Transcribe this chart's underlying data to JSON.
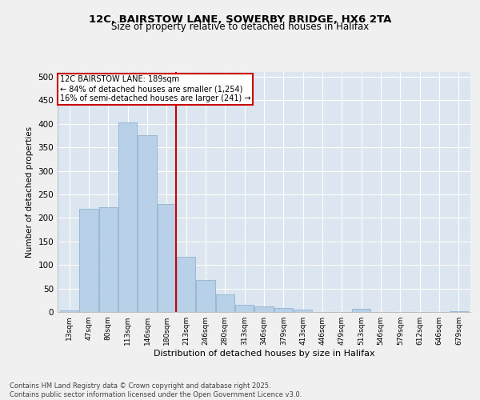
{
  "title_line1": "12C, BAIRSTOW LANE, SOWERBY BRIDGE, HX6 2TA",
  "title_line2": "Size of property relative to detached houses in Halifax",
  "xlabel": "Distribution of detached houses by size in Halifax",
  "ylabel": "Number of detached properties",
  "categories": [
    "13sqm",
    "47sqm",
    "80sqm",
    "113sqm",
    "146sqm",
    "180sqm",
    "213sqm",
    "246sqm",
    "280sqm",
    "313sqm",
    "346sqm",
    "379sqm",
    "413sqm",
    "446sqm",
    "479sqm",
    "513sqm",
    "546sqm",
    "579sqm",
    "612sqm",
    "646sqm",
    "679sqm"
  ],
  "values": [
    3,
    220,
    222,
    403,
    375,
    230,
    118,
    68,
    38,
    15,
    12,
    8,
    5,
    0,
    0,
    7,
    0,
    0,
    0,
    0,
    2
  ],
  "bar_color": "#b8d0e8",
  "bar_edge_color": "#88aac8",
  "vline_x": 5.5,
  "vline_color": "#cc0000",
  "annotation_title": "12C BAIRSTOW LANE: 189sqm",
  "annotation_line2": "← 84% of detached houses are smaller (1,254)",
  "annotation_line3": "16% of semi-detached houses are larger (241) →",
  "annotation_box_color": "#cc0000",
  "ylim": [
    0,
    510
  ],
  "yticks": [
    0,
    50,
    100,
    150,
    200,
    250,
    300,
    350,
    400,
    450,
    500
  ],
  "bg_color": "#dce6f0",
  "fig_bg_color": "#f0f0f0",
  "grid_color": "#ffffff",
  "footer_line1": "Contains HM Land Registry data © Crown copyright and database right 2025.",
  "footer_line2": "Contains public sector information licensed under the Open Government Licence v3.0."
}
